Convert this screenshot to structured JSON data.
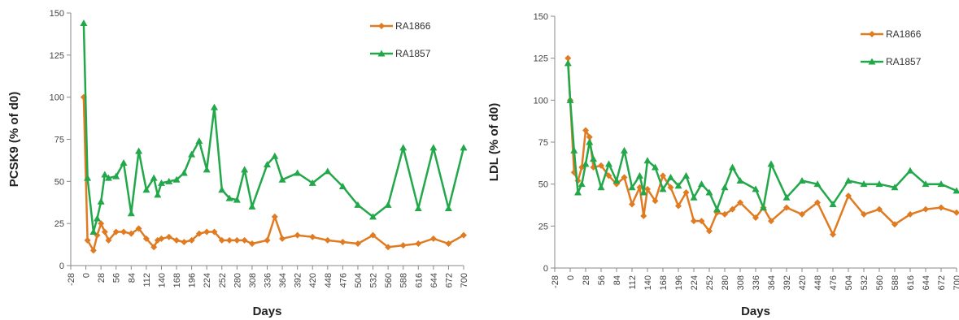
{
  "colors": {
    "RA1866": "#E07B22",
    "RA1857": "#22A84A",
    "axis": "#888888"
  },
  "chart_data": [
    {
      "type": "line",
      "xlabel": "Days",
      "ylabel": "PCSK9 (% of  d0)",
      "ylim": [
        0,
        150
      ],
      "yticks": [
        0,
        25,
        50,
        75,
        100,
        125,
        150
      ],
      "xlim": [
        -28,
        700
      ],
      "xticks": [
        -28,
        0,
        28,
        56,
        84,
        112,
        140,
        168,
        196,
        224,
        252,
        280,
        308,
        336,
        364,
        392,
        420,
        448,
        476,
        504,
        532,
        560,
        588,
        616,
        644,
        672,
        700
      ],
      "legend_position": "top-right",
      "series": [
        {
          "name": "RA1866",
          "color_key": "RA1866",
          "marker": "diamond",
          "x": [
            -4,
            3,
            14,
            21,
            28,
            35,
            42,
            56,
            70,
            84,
            98,
            112,
            126,
            133,
            140,
            154,
            168,
            182,
            196,
            210,
            224,
            238,
            252,
            266,
            280,
            294,
            308,
            336,
            350,
            364,
            392,
            420,
            448,
            476,
            504,
            532,
            560,
            588,
            616,
            644,
            672,
            700
          ],
          "y": [
            100,
            15,
            9,
            18,
            25,
            20,
            15,
            20,
            20,
            19,
            22,
            16,
            11,
            15,
            16,
            17,
            15,
            14,
            15,
            19,
            20,
            20,
            15,
            15,
            15,
            15,
            13,
            15,
            29,
            16,
            18,
            17,
            15,
            14,
            13,
            18,
            11,
            12,
            13,
            16,
            13,
            18
          ]
        },
        {
          "name": "RA1857",
          "color_key": "RA1857",
          "marker": "triangle",
          "x": [
            -4,
            3,
            14,
            21,
            28,
            35,
            42,
            56,
            70,
            84,
            98,
            112,
            126,
            133,
            140,
            154,
            168,
            182,
            196,
            210,
            224,
            238,
            252,
            266,
            280,
            294,
            308,
            336,
            350,
            364,
            392,
            420,
            448,
            476,
            504,
            532,
            560,
            588,
            616,
            644,
            672,
            700
          ],
          "y": [
            144,
            52,
            20,
            28,
            38,
            54,
            52,
            53,
            61,
            31,
            68,
            45,
            52,
            42,
            49,
            50,
            51,
            55,
            66,
            74,
            57,
            94,
            45,
            40,
            39,
            57,
            35,
            60,
            65,
            51,
            55,
            49,
            56,
            47,
            36,
            29,
            36,
            70,
            34,
            70,
            34,
            70
          ]
        }
      ]
    },
    {
      "type": "line",
      "xlabel": "Days",
      "ylabel": "LDL (% of d0)",
      "ylim": [
        0,
        150
      ],
      "yticks": [
        0,
        25,
        50,
        75,
        100,
        125,
        150
      ],
      "xlim": [
        -28,
        700
      ],
      "xticks": [
        -28,
        0,
        28,
        56,
        84,
        112,
        140,
        168,
        196,
        224,
        252,
        280,
        308,
        336,
        364,
        392,
        420,
        448,
        476,
        504,
        532,
        560,
        588,
        616,
        644,
        672,
        700
      ],
      "legend_position": "top-right",
      "series": [
        {
          "name": "RA1866",
          "color_key": "RA1866",
          "marker": "diamond",
          "x": [
            -4,
            0,
            7,
            14,
            21,
            28,
            35,
            42,
            56,
            70,
            84,
            98,
            112,
            126,
            133,
            140,
            154,
            168,
            182,
            196,
            210,
            224,
            238,
            252,
            266,
            280,
            294,
            308,
            336,
            350,
            364,
            392,
            420,
            448,
            476,
            504,
            532,
            560,
            588,
            616,
            644,
            672,
            700
          ],
          "y": [
            125,
            100,
            57,
            52,
            60,
            82,
            78,
            60,
            61,
            55,
            50,
            54,
            38,
            48,
            31,
            47,
            40,
            55,
            48,
            37,
            45,
            28,
            28,
            22,
            33,
            32,
            35,
            39,
            30,
            36,
            28,
            36,
            32,
            39,
            20,
            43,
            32,
            35,
            26,
            32,
            35,
            36,
            33
          ]
        },
        {
          "name": "RA1857",
          "color_key": "RA1857",
          "marker": "triangle",
          "x": [
            -4,
            0,
            7,
            14,
            21,
            28,
            35,
            42,
            56,
            70,
            84,
            98,
            112,
            126,
            133,
            140,
            154,
            168,
            182,
            196,
            210,
            224,
            238,
            252,
            266,
            280,
            294,
            308,
            336,
            350,
            364,
            392,
            420,
            448,
            476,
            504,
            532,
            560,
            588,
            616,
            644,
            672,
            700
          ],
          "y": [
            122,
            100,
            70,
            45,
            50,
            62,
            75,
            65,
            48,
            62,
            52,
            70,
            48,
            55,
            45,
            64,
            60,
            47,
            54,
            49,
            55,
            42,
            50,
            45,
            35,
            48,
            60,
            52,
            47,
            36,
            62,
            42,
            52,
            50,
            38,
            52,
            50,
            50,
            48,
            58,
            50,
            50,
            46
          ]
        }
      ]
    }
  ]
}
